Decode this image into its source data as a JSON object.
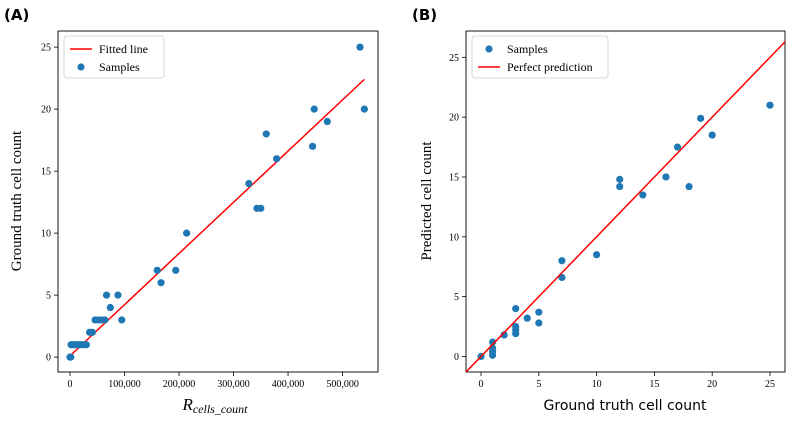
{
  "chart_data": [
    {
      "type": "scatter",
      "panel_label": "(A)",
      "xlabel_main": "R",
      "xlabel_sub": "cells_count",
      "ylabel": "Ground truth cell count",
      "xlim": [
        -22000,
        565000
      ],
      "ylim": [
        -1.2,
        26.3
      ],
      "xticks": [
        0,
        100000,
        200000,
        300000,
        400000,
        500000
      ],
      "xtick_labels": [
        "0",
        "100,000",
        "200,000",
        "300,000",
        "400,000",
        "500,000"
      ],
      "yticks": [
        0,
        5,
        10,
        15,
        20,
        25
      ],
      "ytick_labels": [
        "0",
        "5",
        "10",
        "15",
        "20",
        "25"
      ],
      "legend": [
        {
          "label": "Fitted line",
          "kind": "line",
          "color": "#ff0000"
        },
        {
          "label": "Samples",
          "kind": "marker",
          "color": "#1f77b4"
        }
      ],
      "legend_position": "upper-left",
      "samples": [
        {
          "x": 0,
          "y": 0
        },
        {
          "x": 1500,
          "y": 0
        },
        {
          "x": 2000,
          "y": 1
        },
        {
          "x": 5000,
          "y": 1
        },
        {
          "x": 9000,
          "y": 1
        },
        {
          "x": 13000,
          "y": 1
        },
        {
          "x": 17000,
          "y": 1
        },
        {
          "x": 21000,
          "y": 1
        },
        {
          "x": 25000,
          "y": 1
        },
        {
          "x": 30000,
          "y": 1
        },
        {
          "x": 36000,
          "y": 2
        },
        {
          "x": 41000,
          "y": 2
        },
        {
          "x": 46000,
          "y": 3
        },
        {
          "x": 52000,
          "y": 3
        },
        {
          "x": 58000,
          "y": 3
        },
        {
          "x": 64000,
          "y": 3
        },
        {
          "x": 67000,
          "y": 5
        },
        {
          "x": 74000,
          "y": 4
        },
        {
          "x": 88000,
          "y": 5
        },
        {
          "x": 95000,
          "y": 3
        },
        {
          "x": 160000,
          "y": 7
        },
        {
          "x": 167000,
          "y": 6
        },
        {
          "x": 194000,
          "y": 7
        },
        {
          "x": 214000,
          "y": 10
        },
        {
          "x": 328000,
          "y": 14
        },
        {
          "x": 343000,
          "y": 12
        },
        {
          "x": 350000,
          "y": 12
        },
        {
          "x": 360000,
          "y": 18
        },
        {
          "x": 379000,
          "y": 16
        },
        {
          "x": 445000,
          "y": 17
        },
        {
          "x": 448000,
          "y": 20
        },
        {
          "x": 472000,
          "y": 19
        },
        {
          "x": 532000,
          "y": 25
        },
        {
          "x": 540000,
          "y": 20
        }
      ],
      "fitted_line": {
        "x": [
          0,
          540000
        ],
        "y": [
          0.1,
          22.4
        ]
      },
      "series_colors": {
        "samples": "#1f77b4",
        "line": "#ff0000"
      }
    },
    {
      "type": "scatter",
      "panel_label": "(B)",
      "xlabel": "Ground truth cell count",
      "ylabel": "Predicted cell count",
      "xlim": [
        -1.3,
        26.3
      ],
      "ylim": [
        -1.3,
        27.2
      ],
      "xticks": [
        0,
        5,
        10,
        15,
        20,
        25
      ],
      "xtick_labels": [
        "0",
        "5",
        "10",
        "15",
        "20",
        "25"
      ],
      "yticks": [
        0,
        5,
        10,
        15,
        20,
        25
      ],
      "ytick_labels": [
        "0",
        "5",
        "10",
        "15",
        "20",
        "25"
      ],
      "legend": [
        {
          "label": "Samples",
          "kind": "marker",
          "color": "#1f77b4"
        },
        {
          "label": "Perfect prediction",
          "kind": "line",
          "color": "#ff0000"
        }
      ],
      "legend_position": "upper-left",
      "samples": [
        {
          "x": 0,
          "y": 0
        },
        {
          "x": 1,
          "y": 0.1
        },
        {
          "x": 1,
          "y": 0.4
        },
        {
          "x": 1,
          "y": 0.7
        },
        {
          "x": 1,
          "y": 1.2
        },
        {
          "x": 2,
          "y": 1.8
        },
        {
          "x": 3,
          "y": 1.9
        },
        {
          "x": 3,
          "y": 2.2
        },
        {
          "x": 3,
          "y": 2.5
        },
        {
          "x": 3,
          "y": 4.0
        },
        {
          "x": 4,
          "y": 3.2
        },
        {
          "x": 5,
          "y": 2.8
        },
        {
          "x": 5,
          "y": 3.7
        },
        {
          "x": 7,
          "y": 6.6
        },
        {
          "x": 7,
          "y": 8.0
        },
        {
          "x": 10,
          "y": 8.5
        },
        {
          "x": 12,
          "y": 14.2
        },
        {
          "x": 12,
          "y": 14.8
        },
        {
          "x": 14,
          "y": 13.5
        },
        {
          "x": 16,
          "y": 15.0
        },
        {
          "x": 17,
          "y": 17.5
        },
        {
          "x": 18,
          "y": 14.2
        },
        {
          "x": 19,
          "y": 19.9
        },
        {
          "x": 20,
          "y": 18.5
        },
        {
          "x": 25,
          "y": 21.0
        }
      ],
      "perfect_line": {
        "x": [
          -1.3,
          27.2
        ],
        "y": [
          -1.3,
          27.2
        ]
      },
      "series_colors": {
        "samples": "#1f77b4",
        "line": "#ff0000"
      }
    }
  ]
}
